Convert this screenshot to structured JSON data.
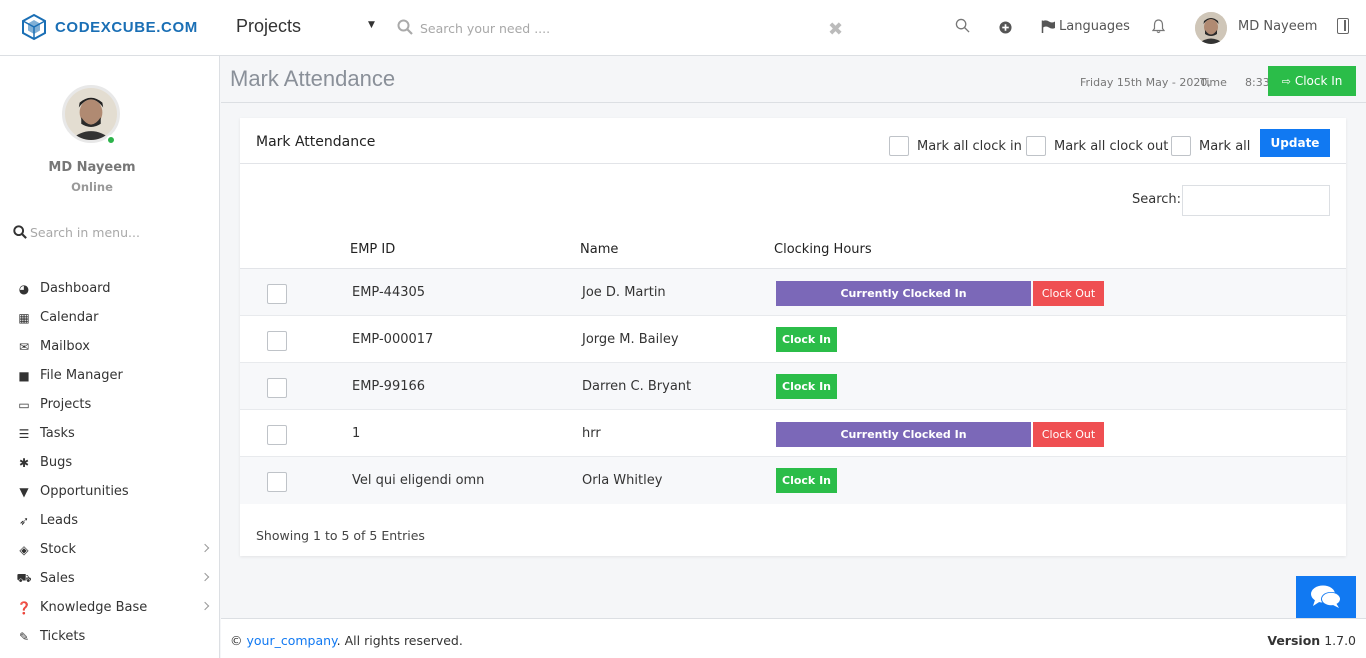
{
  "header": {
    "brand": "CODEXCUBE.COM",
    "module": "Projects",
    "search_placeholder": "Search your need ....",
    "languages_label": "Languages",
    "user_name": "MD Nayeem",
    "icons": [
      "search-icon",
      "plus-circle-icon",
      "flag-icon",
      "bell-icon",
      "layout-icon",
      "close-icon"
    ]
  },
  "sidebar": {
    "user_name": "MD Nayeem",
    "status": "Online",
    "menu_search_placeholder": "Search in menu...",
    "items": [
      {
        "label": "Dashboard",
        "icon": "dashboard-icon",
        "has_children": false
      },
      {
        "label": "Calendar",
        "icon": "calendar-icon",
        "has_children": false
      },
      {
        "label": "Mailbox",
        "icon": "mail-icon",
        "has_children": false
      },
      {
        "label": "File Manager",
        "icon": "file-icon",
        "has_children": false
      },
      {
        "label": "Projects",
        "icon": "folder-open-icon",
        "has_children": false
      },
      {
        "label": "Tasks",
        "icon": "tasks-icon",
        "has_children": false
      },
      {
        "label": "Bugs",
        "icon": "bug-icon",
        "has_children": false
      },
      {
        "label": "Opportunities",
        "icon": "filter-icon",
        "has_children": false
      },
      {
        "label": "Leads",
        "icon": "rocket-icon",
        "has_children": false
      },
      {
        "label": "Stock",
        "icon": "layers-icon",
        "has_children": true
      },
      {
        "label": "Sales",
        "icon": "cart-icon",
        "has_children": true
      },
      {
        "label": "Knowledge Base",
        "icon": "question-circle-icon",
        "has_children": true
      },
      {
        "label": "Tickets",
        "icon": "ticket-icon",
        "has_children": false
      }
    ]
  },
  "page": {
    "title": "Mark Attendance",
    "date": "Friday 15th May - 2020,",
    "time_label": "Time",
    "time": "8:33:17",
    "clock_in_label": "Clock In"
  },
  "card": {
    "title": "Mark Attendance",
    "mark_all_clock_in": "Mark all clock in",
    "mark_all_clock_out": "Mark all clock out",
    "mark_all": "Mark all",
    "update_label": "Update",
    "search_label": "Search:",
    "columns": [
      "EMP ID",
      "Name",
      "Clocking Hours"
    ],
    "rows": [
      {
        "emp_id": "EMP-44305",
        "name": "Joe D. Martin",
        "status": "clocked_in",
        "status_label": "Currently Clocked In",
        "action_label": "Clock Out"
      },
      {
        "emp_id": "EMP-000017",
        "name": "Jorge M. Bailey",
        "status": "clocked_out",
        "action_label": "Clock In"
      },
      {
        "emp_id": "EMP-99166",
        "name": "Darren C. Bryant",
        "status": "clocked_out",
        "action_label": "Clock In"
      },
      {
        "emp_id": "1",
        "name": "hrr",
        "status": "clocked_in",
        "status_label": "Currently Clocked In",
        "action_label": "Clock Out"
      },
      {
        "emp_id": "Vel qui eligendi omn",
        "name": "Orla Whitley",
        "status": "clocked_out",
        "action_label": "Clock In"
      }
    ],
    "showing": "Showing 1 to 5 of 5 Entries"
  },
  "footer": {
    "copyright_symbol": "©",
    "company": "your_company",
    "rights": ". All rights reserved.",
    "version_label": "Version",
    "version": "1.7.0"
  },
  "colors": {
    "primary": "#1179f2",
    "success": "#2bbd49",
    "danger": "#ef4f52",
    "purple": "#7b68b8",
    "brand": "#1a6fb5"
  }
}
